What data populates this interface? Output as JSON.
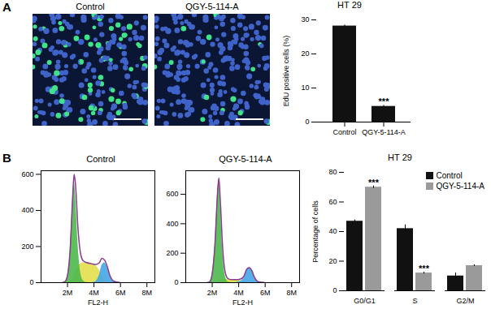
{
  "panel_labels": [
    "A",
    "B"
  ],
  "image_titles": [
    "Control",
    "QGY-5-114-A"
  ],
  "chart_data": [
    {
      "type": "bar",
      "title": "HT 29",
      "y_label": "EdU positive cells (%)",
      "categories": [
        "Control",
        "QGY-5-114-A"
      ],
      "values": [
        28.2,
        4.6
      ],
      "errors": [
        0.3,
        0.3
      ],
      "color": "#111111",
      "ylim": [
        0,
        30
      ],
      "yticks": [
        0,
        10,
        20,
        30
      ],
      "annotations": [
        {
          "category": "QGY-5-114-A",
          "text": "***"
        }
      ]
    },
    {
      "type": "area",
      "title": "Control",
      "x_label": "FL2-H",
      "x": [
        1600000,
        1800000,
        2000000,
        2200000,
        2400000,
        2500000,
        2600000,
        2800000,
        3000000,
        3200000,
        3500000,
        3800000,
        4100000,
        4400000,
        4600000,
        4800000,
        5000000,
        5200000,
        5500000,
        6000000
      ],
      "series": [
        {
          "type": "area",
          "color": "#e3df4c",
          "values": [
            0,
            0,
            0,
            5,
            20,
            40,
            60,
            90,
            105,
            110,
            110,
            105,
            95,
            70,
            40,
            15,
            5,
            0,
            0,
            0
          ]
        },
        {
          "type": "area",
          "color": "#45a6e6",
          "values": [
            0,
            0,
            0,
            0,
            0,
            0,
            0,
            0,
            0,
            0,
            0,
            0,
            5,
            40,
            95,
            110,
            85,
            40,
            8,
            0
          ]
        },
        {
          "type": "area",
          "color": "#4cb84c",
          "values": [
            0,
            5,
            40,
            180,
            470,
            560,
            485,
            200,
            50,
            10,
            0,
            0,
            0,
            0,
            0,
            0,
            0,
            0,
            0,
            0
          ]
        },
        {
          "type": "line",
          "color": "#8a3a8f",
          "values": [
            0,
            5,
            40,
            185,
            490,
            600,
            545,
            290,
            155,
            120,
            110,
            105,
            100,
            110,
            135,
            125,
            90,
            40,
            8,
            0
          ]
        }
      ],
      "xlim": [
        0,
        8600000
      ],
      "xticks": [
        {
          "value": 2000000,
          "label": "2M"
        },
        {
          "value": 4000000,
          "label": "4M"
        },
        {
          "value": 6000000,
          "label": "6M"
        },
        {
          "value": 8000000,
          "label": "8M"
        }
      ],
      "ylim": [
        0,
        620
      ],
      "yticks": [
        0,
        200,
        400,
        600
      ]
    },
    {
      "type": "area",
      "title": "QGY-5-114-A",
      "x_label": "FL2-H",
      "x": [
        1600000,
        1800000,
        2000000,
        2200000,
        2400000,
        2500000,
        2600000,
        2800000,
        3000000,
        3200000,
        3500000,
        3800000,
        4100000,
        4400000,
        4600000,
        4800000,
        5000000,
        5200000,
        5500000,
        6000000
      ],
      "series": [
        {
          "type": "area",
          "color": "#e3df4c",
          "values": [
            0,
            0,
            0,
            0,
            5,
            10,
            15,
            20,
            22,
            22,
            20,
            18,
            15,
            10,
            5,
            2,
            0,
            0,
            0,
            0
          ]
        },
        {
          "type": "area",
          "color": "#45a6e6",
          "values": [
            0,
            0,
            0,
            0,
            0,
            0,
            0,
            0,
            0,
            0,
            0,
            2,
            8,
            35,
            85,
            100,
            80,
            35,
            5,
            0
          ]
        },
        {
          "type": "area",
          "color": "#4cb84c",
          "values": [
            0,
            5,
            60,
            250,
            600,
            700,
            560,
            200,
            40,
            5,
            0,
            0,
            0,
            0,
            0,
            0,
            0,
            0,
            0,
            0
          ]
        },
        {
          "type": "line",
          "color": "#8a3a8f",
          "values": [
            0,
            5,
            60,
            250,
            605,
            710,
            575,
            220,
            62,
            27,
            20,
            20,
            23,
            45,
            90,
            102,
            80,
            35,
            5,
            0
          ]
        }
      ],
      "xlim": [
        0,
        8600000
      ],
      "xticks": [
        {
          "value": 2000000,
          "label": "2M"
        },
        {
          "value": 4000000,
          "label": "4M"
        },
        {
          "value": 6000000,
          "label": "6M"
        },
        {
          "value": 8000000,
          "label": "8M"
        }
      ],
      "ylim": [
        0,
        760
      ],
      "yticks": [
        0,
        200,
        400,
        600
      ]
    },
    {
      "type": "bar",
      "title": "HT 29",
      "y_label": "Percentage of cells",
      "categories": [
        "G0/G1",
        "S",
        "G2/M"
      ],
      "series": [
        {
          "name": "Control",
          "color": "#111111",
          "values": [
            47,
            42,
            10
          ],
          "errors": [
            0.8,
            2.5,
            2
          ]
        },
        {
          "name": "QGY-5-114-A",
          "color": "#9a9a9a",
          "values": [
            70,
            12,
            17
          ],
          "errors": [
            0.8,
            0.6,
            0.5
          ]
        }
      ],
      "ylim": [
        0,
        80
      ],
      "yticks": [
        0,
        20,
        40,
        60,
        80
      ],
      "legend": "top-right",
      "annotations": [
        {
          "category": "G0/G1",
          "series": "QGY-5-114-A",
          "text": "***"
        },
        {
          "category": "S",
          "series": "QGY-5-114-A",
          "text": "***"
        }
      ]
    }
  ]
}
